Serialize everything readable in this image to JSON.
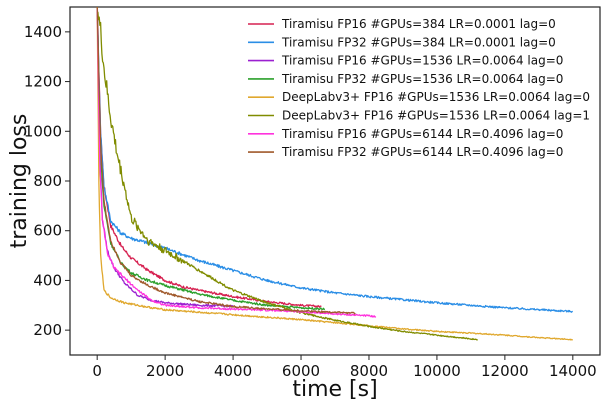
{
  "chart_data": {
    "type": "line",
    "title": "",
    "xlabel": "time [s]",
    "ylabel": "training loss",
    "xlim": [
      -800,
      14800
    ],
    "ylim": [
      100,
      1500
    ],
    "xticks": [
      0,
      2000,
      4000,
      6000,
      8000,
      10000,
      12000,
      14000
    ],
    "yticks": [
      200,
      400,
      600,
      800,
      1000,
      1200,
      1400
    ],
    "legend_position": "top-right",
    "grid": false,
    "series": [
      {
        "name": "Tiramisu FP16 #GPUs=384 LR=0.0001 lag=0",
        "color": "#d62050",
        "x": [
          0,
          100,
          200,
          400,
          700,
          1000,
          1500,
          2000,
          2500,
          3000,
          4000,
          5000,
          6000,
          6600
        ],
        "y": [
          1500,
          1000,
          780,
          620,
          540,
          490,
          440,
          400,
          375,
          360,
          335,
          315,
          300,
          295
        ]
      },
      {
        "name": "Tiramisu FP32 #GPUs=384 LR=0.0001 lag=0",
        "color": "#2b8ee6",
        "x": [
          0,
          100,
          200,
          400,
          700,
          1000,
          1500,
          2000,
          3000,
          4000,
          5000,
          6000,
          7000,
          8000,
          10000,
          12000,
          14000
        ],
        "y": [
          1500,
          1000,
          780,
          640,
          590,
          570,
          550,
          530,
          480,
          440,
          400,
          370,
          350,
          335,
          310,
          290,
          275
        ]
      },
      {
        "name": "Tiramisu FP16 #GPUs=1536 LR=0.0064 lag=0",
        "color": "#9b20d0",
        "x": [
          0,
          80,
          150,
          300,
          500,
          800,
          1200,
          1600,
          2000,
          2500,
          3000,
          3500,
          4000
        ],
        "y": [
          1500,
          900,
          650,
          520,
          450,
          390,
          340,
          320,
          310,
          305,
          300,
          298,
          296
        ]
      },
      {
        "name": "Tiramisu FP32 #GPUs=1536 LR=0.0064 lag=0",
        "color": "#2ca02c",
        "x": [
          0,
          100,
          200,
          400,
          700,
          1000,
          1500,
          2000,
          3000,
          4000,
          5000,
          6000,
          6700
        ],
        "y": [
          1500,
          900,
          700,
          550,
          470,
          430,
          400,
          380,
          345,
          320,
          300,
          290,
          285
        ]
      },
      {
        "name": "DeepLabv3+ FP16 #GPUs=1536 LR=0.0064 lag=0",
        "color": "#e0a82e",
        "x": [
          0,
          50,
          100,
          200,
          400,
          800,
          1200,
          1600,
          2000,
          3000,
          4000,
          5000,
          6000,
          7000,
          8000,
          9000,
          10000,
          11000,
          12000,
          13000,
          14000
        ],
        "y": [
          1500,
          800,
          500,
          360,
          330,
          310,
          300,
          290,
          282,
          272,
          262,
          252,
          242,
          230,
          218,
          205,
          195,
          188,
          180,
          170,
          162
        ]
      },
      {
        "name": "DeepLabv3+ FP16 #GPUs=1536 LR=0.0064 lag=1",
        "color": "#808c00",
        "x": [
          0,
          100,
          200,
          400,
          600,
          800,
          1000,
          1500,
          2000,
          2500,
          3000,
          3500,
          4000,
          5000,
          6000,
          7000,
          8000,
          9000,
          10000,
          11000,
          11200
        ],
        "y": [
          1500,
          1400,
          1250,
          1050,
          900,
          780,
          650,
          560,
          520,
          480,
          440,
          400,
          360,
          310,
          270,
          240,
          215,
          195,
          180,
          165,
          162
        ]
      },
      {
        "name": "Tiramisu FP16 #GPUs=6144 LR=0.4096 lag=0",
        "color": "#ff33dd",
        "x": [
          0,
          80,
          150,
          300,
          500,
          800,
          1200,
          1600,
          2000,
          3000,
          4000,
          5000,
          6000,
          7000,
          8000,
          8200
        ],
        "y": [
          1500,
          850,
          650,
          510,
          450,
          410,
          360,
          320,
          300,
          290,
          285,
          280,
          275,
          265,
          258,
          255
        ]
      },
      {
        "name": "Tiramisu FP32 #GPUs=6144 LR=0.4096 lag=0",
        "color": "#a05a2c",
        "x": [
          0,
          100,
          200,
          400,
          700,
          1000,
          1500,
          2000,
          3000,
          4000,
          5000,
          6000,
          7000,
          7600
        ],
        "y": [
          1500,
          950,
          720,
          560,
          470,
          420,
          380,
          350,
          315,
          295,
          285,
          278,
          272,
          268
        ]
      }
    ]
  }
}
